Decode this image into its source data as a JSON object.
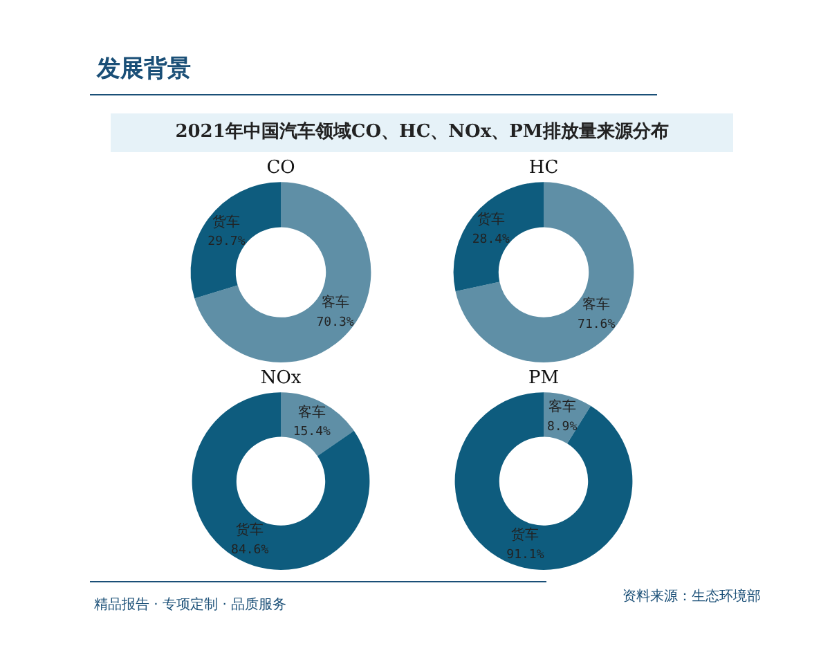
{
  "chart_data": [
    {
      "type": "donut",
      "title": "CO",
      "categories": [
        "客车",
        "货车"
      ],
      "values": [
        70.3,
        29.7
      ],
      "colors": [
        "#5f8fa6",
        "#0e5c7e"
      ],
      "value_labels": [
        "70.3%",
        "29.7%"
      ],
      "legend": false,
      "annotations": [
        "发展背景",
        "2021年中国汽车领域CO、HC、NOx、PM排放量来源分布"
      ]
    },
    {
      "type": "donut",
      "title": "HC",
      "categories": [
        "客车",
        "货车"
      ],
      "values": [
        71.6,
        28.4
      ],
      "colors": [
        "#5f8fa6",
        "#0e5c7e"
      ],
      "value_labels": [
        "71.6%",
        "28.4%"
      ],
      "legend": false
    },
    {
      "type": "donut",
      "title": "NOx",
      "categories": [
        "客车",
        "货车"
      ],
      "values": [
        15.4,
        84.6
      ],
      "colors": [
        "#5f8fa6",
        "#0e5c7e"
      ],
      "value_labels": [
        "15.4%",
        "84.6%"
      ],
      "legend": false
    },
    {
      "type": "donut",
      "title": "PM",
      "categories": [
        "客车",
        "货车"
      ],
      "values": [
        8.9,
        91.1
      ],
      "colors": [
        "#5f8fa6",
        "#0e5c7e"
      ],
      "value_labels": [
        "8.9%",
        "91.1%"
      ],
      "legend": false,
      "annotations": [
        "精品报告 · 专项定制 · 品质服务",
        "资料来源：生态环境部"
      ]
    }
  ]
}
